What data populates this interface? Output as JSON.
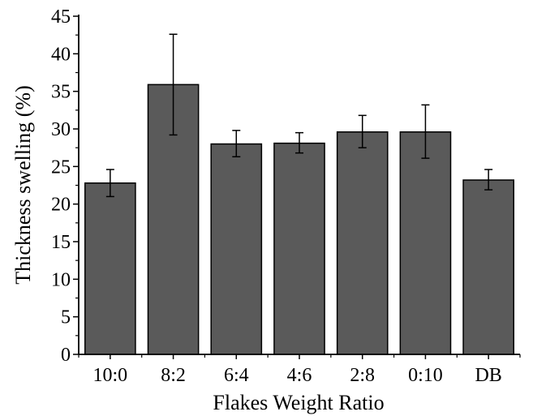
{
  "chart_data": {
    "type": "bar",
    "title": "",
    "xlabel": "Flakes Weight Ratio",
    "ylabel": "Thickness swelling (%)",
    "categories": [
      "10:0",
      "8:2",
      "6:4",
      "4:6",
      "2:8",
      "0:10",
      "DB"
    ],
    "values": [
      22.8,
      35.9,
      28.0,
      28.1,
      29.6,
      29.6,
      23.2
    ],
    "error_low": [
      21.0,
      29.2,
      26.3,
      26.8,
      27.5,
      26.1,
      21.9
    ],
    "error_high": [
      24.6,
      42.6,
      29.8,
      29.5,
      31.8,
      33.2,
      24.6
    ],
    "ylim": [
      0,
      45
    ],
    "yticks": [
      0,
      5,
      10,
      15,
      20,
      25,
      30,
      35,
      40,
      45
    ],
    "grid": false,
    "legend": "none",
    "bar_color": "#5a5a5a",
    "edge_color": "#000000"
  }
}
